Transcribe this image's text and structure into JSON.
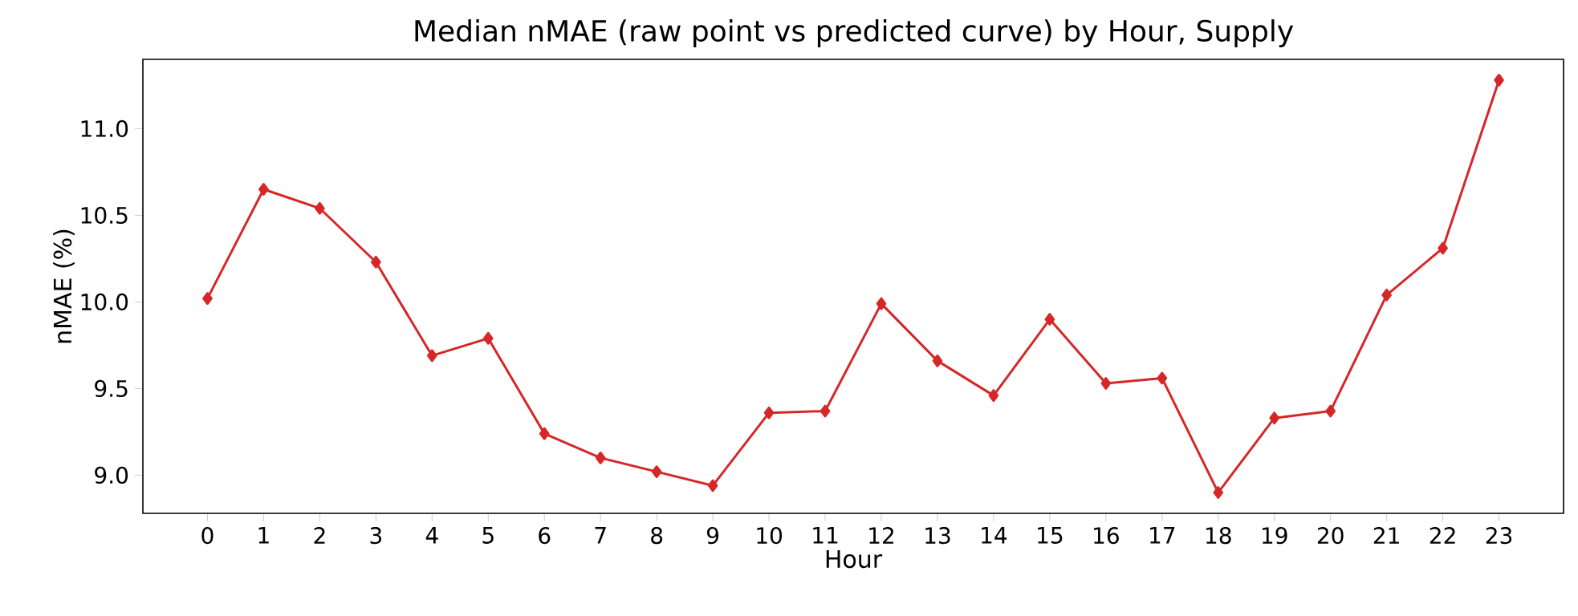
{
  "chart_data": {
    "type": "line",
    "title": "Median nMAE (raw point vs predicted curve) by Hour, Supply",
    "xlabel": "Hour",
    "ylabel": "nMAE (%)",
    "categories": [
      "0",
      "1",
      "2",
      "3",
      "4",
      "5",
      "6",
      "7",
      "8",
      "9",
      "10",
      "11",
      "12",
      "13",
      "14",
      "15",
      "16",
      "17",
      "18",
      "19",
      "20",
      "21",
      "22",
      "23"
    ],
    "series": [
      {
        "color": "#d62728",
        "values": [
          10.02,
          10.65,
          10.54,
          10.23,
          9.69,
          9.79,
          9.24,
          9.1,
          9.02,
          8.94,
          9.36,
          9.37,
          9.99,
          9.66,
          9.46,
          9.9,
          9.53,
          9.56,
          8.9,
          9.33,
          9.37,
          10.04,
          10.31,
          11.28
        ]
      }
    ],
    "ylim": [
      8.78,
      11.4
    ],
    "yticks": [
      {
        "value": 9.0,
        "label": "9.0"
      },
      {
        "value": 9.5,
        "label": "9.5"
      },
      {
        "value": 10.0,
        "label": "10.0"
      },
      {
        "value": 10.5,
        "label": "10.5"
      },
      {
        "value": 11.0,
        "label": "11.0"
      }
    ],
    "marker": "diamond",
    "line_style": "solid",
    "grid": false
  }
}
